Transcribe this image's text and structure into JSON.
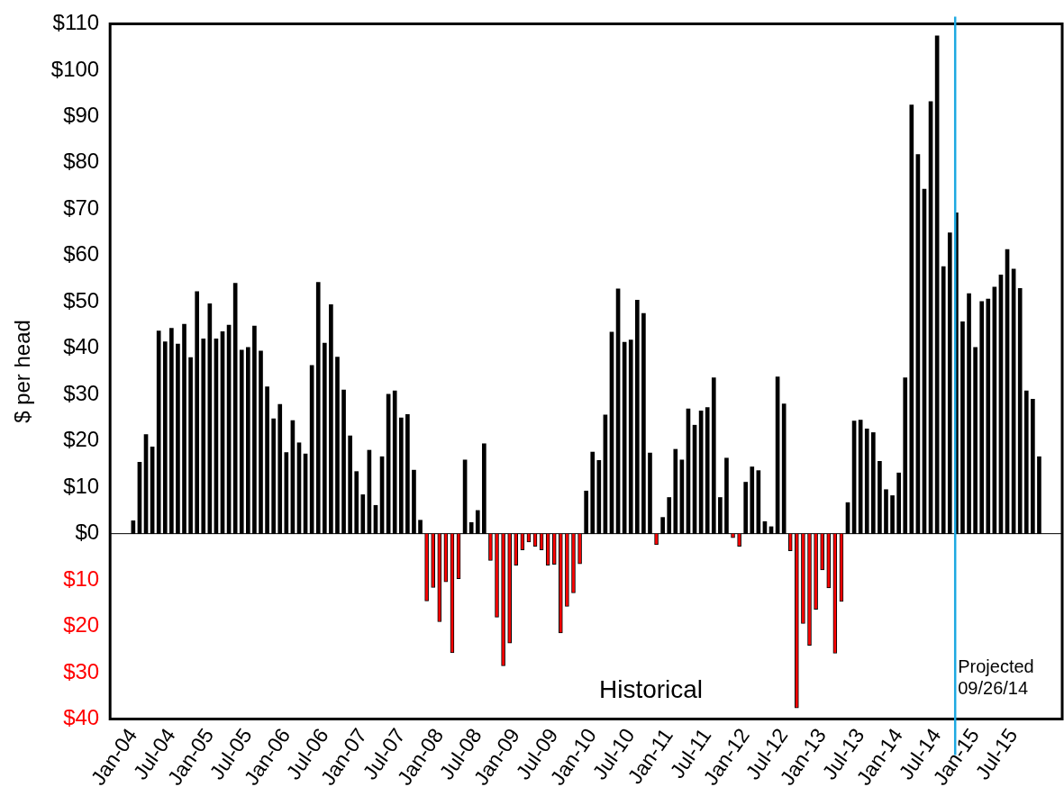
{
  "chart_data": {
    "type": "bar",
    "ylabel": "$ per head",
    "x": [
      "2004-01",
      "2004-02",
      "2004-03",
      "2004-04",
      "2004-05",
      "2004-06",
      "2004-07",
      "2004-08",
      "2004-09",
      "2004-10",
      "2004-11",
      "2004-12",
      "2005-01",
      "2005-02",
      "2005-03",
      "2005-04",
      "2005-05",
      "2005-06",
      "2005-07",
      "2005-08",
      "2005-09",
      "2005-10",
      "2005-11",
      "2005-12",
      "2006-01",
      "2006-02",
      "2006-03",
      "2006-04",
      "2006-05",
      "2006-06",
      "2006-07",
      "2006-08",
      "2006-09",
      "2006-10",
      "2006-11",
      "2006-12",
      "2007-01",
      "2007-02",
      "2007-03",
      "2007-04",
      "2007-05",
      "2007-06",
      "2007-07",
      "2007-08",
      "2007-09",
      "2007-10",
      "2007-11",
      "2007-12",
      "2008-01",
      "2008-02",
      "2008-03",
      "2008-04",
      "2008-05",
      "2008-06",
      "2008-07",
      "2008-08",
      "2008-09",
      "2008-10",
      "2008-11",
      "2008-12",
      "2009-01",
      "2009-02",
      "2009-03",
      "2009-04",
      "2009-05",
      "2009-06",
      "2009-07",
      "2009-08",
      "2009-09",
      "2009-10",
      "2009-11",
      "2009-12",
      "2010-01",
      "2010-02",
      "2010-03",
      "2010-04",
      "2010-05",
      "2010-06",
      "2010-07",
      "2010-08",
      "2010-09",
      "2010-10",
      "2010-11",
      "2010-12",
      "2011-01",
      "2011-02",
      "2011-03",
      "2011-04",
      "2011-05",
      "2011-06",
      "2011-07",
      "2011-08",
      "2011-09",
      "2011-10",
      "2011-11",
      "2011-12",
      "2012-01",
      "2012-02",
      "2012-03",
      "2012-04",
      "2012-05",
      "2012-06",
      "2012-07",
      "2012-08",
      "2012-09",
      "2012-10",
      "2012-11",
      "2012-12",
      "2013-01",
      "2013-02",
      "2013-03",
      "2013-04",
      "2013-05",
      "2013-06",
      "2013-07",
      "2013-08",
      "2013-09",
      "2013-10",
      "2013-11",
      "2013-12",
      "2014-01",
      "2014-02",
      "2014-03",
      "2014-04",
      "2014-05",
      "2014-06",
      "2014-07",
      "2014-08",
      "2014-09",
      "2014-10",
      "2014-11",
      "2014-12",
      "2015-01",
      "2015-02",
      "2015-03",
      "2015-04",
      "2015-05",
      "2015-06",
      "2015-07",
      "2015-08",
      "2015-09",
      "2015-10",
      "2015-11"
    ],
    "values": [
      2.8,
      15.4,
      21.4,
      18.7,
      43.7,
      41.4,
      44.3,
      40.9,
      45.2,
      38.0,
      52.2,
      42.0,
      49.6,
      42.0,
      43.6,
      45.0,
      54.0,
      39.6,
      40.2,
      44.8,
      39.4,
      31.7,
      24.8,
      27.9,
      17.5,
      24.4,
      19.6,
      17.2,
      36.3,
      54.2,
      41.1,
      49.4,
      38.1,
      31.0,
      21.1,
      13.4,
      8.4,
      18.0,
      6.1,
      16.6,
      30.1,
      30.8,
      25.0,
      25.7,
      13.7,
      2.9,
      -14.5,
      -11.6,
      -19.0,
      -10.4,
      -25.7,
      -9.7,
      15.9,
      2.4,
      5.0,
      19.4,
      -5.8,
      -18.0,
      -28.5,
      -23.6,
      -6.8,
      -3.5,
      -1.8,
      -2.7,
      -3.5,
      -6.8,
      -6.6,
      -21.4,
      -15.7,
      -12.8,
      -6.5,
      9.2,
      17.6,
      15.8,
      25.6,
      43.5,
      52.8,
      41.3,
      41.8,
      50.4,
      47.5,
      17.4,
      -2.4,
      3.5,
      7.8,
      18.2,
      15.9,
      26.9,
      23.4,
      26.5,
      27.2,
      33.6,
      7.8,
      16.3,
      -0.9,
      -2.7,
      11.1,
      14.4,
      13.6,
      2.6,
      1.5,
      33.8,
      28.0,
      -3.7,
      -37.6,
      -19.4,
      -24.1,
      -16.3,
      -7.8,
      -11.7,
      -25.8,
      -14.6,
      6.7,
      24.3,
      24.5,
      22.6,
      21.8,
      15.6,
      9.5,
      8.2,
      13.1,
      33.6,
      92.5,
      81.8,
      74.3,
      93.2,
      107.4,
      57.6,
      64.9,
      69.2,
      45.7,
      51.8,
      40.2,
      50.1,
      50.6,
      53.2,
      55.8,
      61.3,
      57.1,
      52.9,
      30.8,
      29.0,
      16.6
    ],
    "colors": [
      "#000000",
      "#000000",
      "#000000",
      "#000000",
      "#000000",
      "#000000",
      "#000000",
      "#000000",
      "#000000",
      "#000000",
      "#000000",
      "#000000",
      "#000000",
      "#000000",
      "#000000",
      "#000000",
      "#000000",
      "#000000",
      "#000000",
      "#000000",
      "#000000",
      "#000000",
      "#000000",
      "#000000",
      "#000000",
      "#000000",
      "#000000",
      "#000000",
      "#000000",
      "#000000",
      "#000000",
      "#000000",
      "#000000",
      "#000000",
      "#000000",
      "#000000",
      "#000000",
      "#000000",
      "#000000",
      "#000000",
      "#000000",
      "#000000",
      "#000000",
      "#000000",
      "#000000",
      "#000000",
      "#ff0000",
      "#ff0000",
      "#ff0000",
      "#ff0000",
      "#ff0000",
      "#ff0000",
      "#000000",
      "#000000",
      "#000000",
      "#000000",
      "#ff0000",
      "#ff0000",
      "#ff0000",
      "#ff0000",
      "#ff0000",
      "#ff0000",
      "#ff0000",
      "#ff0000",
      "#ff0000",
      "#ff0000",
      "#ff0000",
      "#ff0000",
      "#ff0000",
      "#ff0000",
      "#ff0000",
      "#000000",
      "#000000",
      "#000000",
      "#000000",
      "#000000",
      "#000000",
      "#000000",
      "#000000",
      "#000000",
      "#000000",
      "#000000",
      "#ff0000",
      "#000000",
      "#000000",
      "#000000",
      "#000000",
      "#000000",
      "#000000",
      "#000000",
      "#000000",
      "#000000",
      "#000000",
      "#000000",
      "#ff0000",
      "#ff0000",
      "#000000",
      "#000000",
      "#000000",
      "#000000",
      "#000000",
      "#000000",
      "#000000",
      "#ff0000",
      "#ff0000",
      "#ff0000",
      "#ff0000",
      "#ff0000",
      "#ff0000",
      "#ff0000",
      "#ff0000",
      "#ff0000",
      "#000000",
      "#000000",
      "#000000",
      "#000000",
      "#000000",
      "#000000",
      "#000000",
      "#000000",
      "#000000",
      "#000000",
      "#000000",
      "#000000",
      "#000000",
      "#000000",
      "#000000",
      "#000000",
      "#000000",
      "#000000",
      "#000000",
      "#000000",
      "#000000",
      "#000000",
      "#000000",
      "#000000",
      "#000000",
      "#000000",
      "#000000",
      "#000000",
      "#000000",
      "#000000",
      "#000000"
    ],
    "xlim": [
      "2003-12-16",
      "2015-11-16"
    ],
    "xticks": [
      {
        "value": "2004-01",
        "label": "Jan-04"
      },
      {
        "value": "2004-07",
        "label": "Jul-04"
      },
      {
        "value": "2005-01",
        "label": "Jan-05"
      },
      {
        "value": "2005-07",
        "label": "Jul-05"
      },
      {
        "value": "2006-01",
        "label": "Jan-06"
      },
      {
        "value": "2006-07",
        "label": "Jul-06"
      },
      {
        "value": "2007-01",
        "label": "Jan-07"
      },
      {
        "value": "2007-07",
        "label": "Jul-07"
      },
      {
        "value": "2008-01",
        "label": "Jan-08"
      },
      {
        "value": "2008-07",
        "label": "Jul-08"
      },
      {
        "value": "2009-01",
        "label": "Jan-09"
      },
      {
        "value": "2009-07",
        "label": "Jul-09"
      },
      {
        "value": "2010-01",
        "label": "Jan-10"
      },
      {
        "value": "2010-07",
        "label": "Jul-10"
      },
      {
        "value": "2011-01",
        "label": "Jan-11"
      },
      {
        "value": "2011-07",
        "label": "Jul-11"
      },
      {
        "value": "2012-01",
        "label": "Jan-12"
      },
      {
        "value": "2012-07",
        "label": "Jul-12"
      },
      {
        "value": "2013-01",
        "label": "Jan-13"
      },
      {
        "value": "2013-07",
        "label": "Jul-13"
      },
      {
        "value": "2014-01",
        "label": "Jan-14"
      },
      {
        "value": "2014-07",
        "label": "Jul-14"
      },
      {
        "value": "2015-01",
        "label": "Jan-15"
      },
      {
        "value": "2015-07",
        "label": "Jul-15"
      }
    ],
    "ylim": [
      -40,
      110
    ],
    "yticks": [
      {
        "value": -40,
        "label": "$40"
      },
      {
        "value": -30,
        "label": "$30"
      },
      {
        "value": -20,
        "label": "$20"
      },
      {
        "value": -10,
        "label": "$10"
      },
      {
        "value": 0,
        "label": "$0"
      },
      {
        "value": 10,
        "label": "$10"
      },
      {
        "value": 20,
        "label": "$20"
      },
      {
        "value": 30,
        "label": "$30"
      },
      {
        "value": 40,
        "label": "$40"
      },
      {
        "value": 50,
        "label": "$50"
      },
      {
        "value": 60,
        "label": "$60"
      },
      {
        "value": 70,
        "label": "$70"
      },
      {
        "value": 80,
        "label": "$80"
      },
      {
        "value": 90,
        "label": "$90"
      },
      {
        "value": 100,
        "label": "$100"
      },
      {
        "value": 110,
        "label": "$110"
      }
    ],
    "ref_lines": [
      {
        "axis": "x",
        "value": "2014-09-26",
        "label": "Projected 09/26/14",
        "color": "#1ea9e1"
      },
      {
        "axis": "y",
        "value": 0,
        "color": "#000000"
      }
    ],
    "annotations": [
      "Historical"
    ],
    "grid": false,
    "legend": false
  }
}
